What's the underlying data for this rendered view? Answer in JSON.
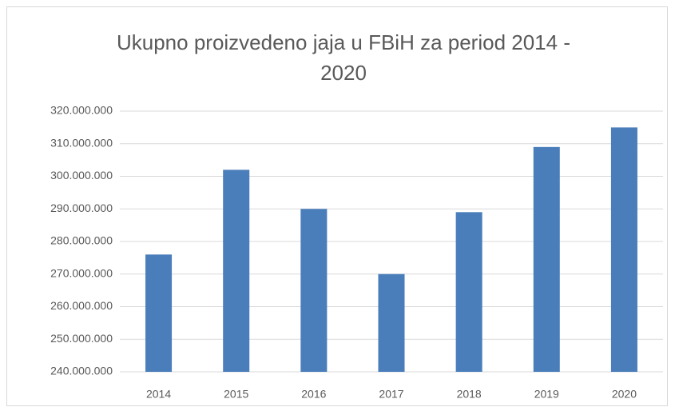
{
  "chart_data": {
    "type": "bar",
    "title": "Ukupno proizvedeno jaja u FBiH za period 2014 - 2020",
    "categories": [
      "2014",
      "2015",
      "2016",
      "2017",
      "2018",
      "2019",
      "2020"
    ],
    "values": [
      276000000,
      302000000,
      290000000,
      270000000,
      289000000,
      309000000,
      315000000
    ],
    "color": "#4a7ebb",
    "ylim": [
      240000000,
      320000000
    ],
    "yticks": [
      {
        "value": 240000000,
        "label": "240.000.000"
      },
      {
        "value": 250000000,
        "label": "250.000.000"
      },
      {
        "value": 260000000,
        "label": "260.000.000"
      },
      {
        "value": 270000000,
        "label": "270.000.000"
      },
      {
        "value": 280000000,
        "label": "280.000.000"
      },
      {
        "value": 290000000,
        "label": "290.000.000"
      },
      {
        "value": 300000000,
        "label": "300.000.000"
      },
      {
        "value": 310000000,
        "label": "310.000.000"
      },
      {
        "value": 320000000,
        "label": "320.000.000"
      }
    ],
    "grid": true
  }
}
